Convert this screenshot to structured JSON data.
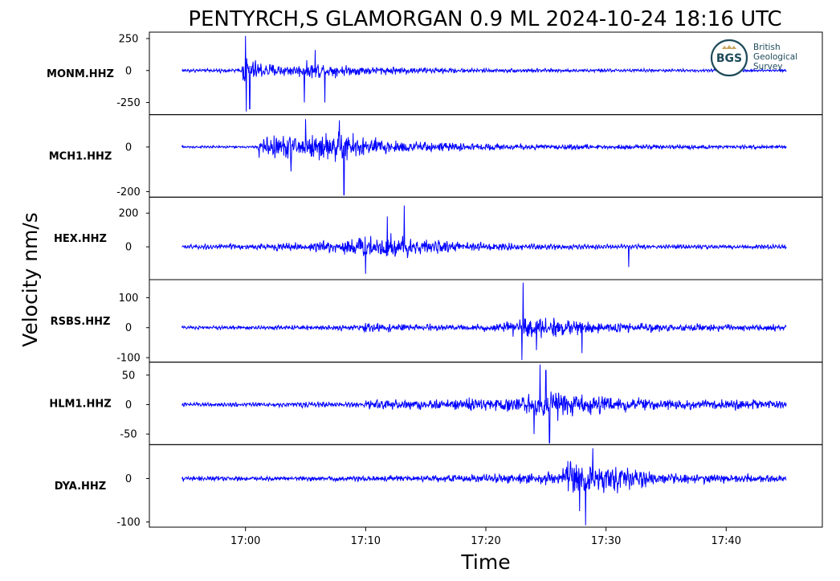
{
  "chart_data": {
    "type": "line",
    "title": "PENTYRCH,S GLAMORGAN 0.9 ML   2024-10-24 18:16 UTC",
    "xlabel": "Time",
    "ylabel": "Velocity nm/s",
    "x_ticks": [
      "17:00",
      "17:10",
      "17:20",
      "17:30",
      "17:40"
    ],
    "x_tick_minutes": [
      0,
      10,
      20,
      30,
      40
    ],
    "xlim": [
      -8,
      48
    ],
    "trace_range": [
      -5.3,
      45
    ],
    "line_color": "#0000ff",
    "grid": false,
    "legend": "none",
    "panels": [
      {
        "station": "MONM.HHZ",
        "ylim": [
          -345,
          300
        ],
        "yticks": [
          250,
          0,
          -250
        ],
        "ytick_labels": [
          "250",
          "0",
          "-250"
        ],
        "noise": 10,
        "envelope": [
          [
            -5.3,
            15
          ],
          [
            -0.3,
            18
          ],
          [
            -0.2,
            170
          ],
          [
            0.5,
            120
          ],
          [
            2,
            75
          ],
          [
            4,
            62
          ],
          [
            6,
            95
          ],
          [
            8,
            55
          ],
          [
            12,
            40
          ],
          [
            16,
            28
          ],
          [
            22,
            18
          ],
          [
            30,
            14
          ],
          [
            45,
            12
          ]
        ],
        "spikes": [
          [
            0.0,
            270
          ],
          [
            0.07,
            -320
          ],
          [
            0.35,
            -300
          ],
          [
            4.9,
            -250
          ],
          [
            6.6,
            -250
          ],
          [
            5.8,
            160
          ]
        ]
      },
      {
        "station": "MCH1.HHZ",
        "ylim": [
          -225,
          145
        ],
        "yticks": [
          0,
          -200
        ],
        "ytick_labels": [
          "0",
          "-200"
        ],
        "noise": 4,
        "envelope": [
          [
            -5.3,
            6
          ],
          [
            1,
            6
          ],
          [
            1.1,
            65
          ],
          [
            4,
            75
          ],
          [
            6,
            80
          ],
          [
            8,
            95
          ],
          [
            10,
            60
          ],
          [
            13,
            38
          ],
          [
            17,
            24
          ],
          [
            25,
            16
          ],
          [
            35,
            12
          ],
          [
            45,
            10
          ]
        ],
        "spikes": [
          [
            8.2,
            -215
          ],
          [
            7.8,
            120
          ],
          [
            5,
            125
          ],
          [
            3.8,
            -110
          ]
        ]
      },
      {
        "station": "HEX.HHZ",
        "ylim": [
          -195,
          295
        ],
        "yticks": [
          200,
          0
        ],
        "ytick_labels": [
          "200",
          "0"
        ],
        "noise": 12,
        "envelope": [
          [
            -5.3,
            14
          ],
          [
            2,
            22
          ],
          [
            5,
            35
          ],
          [
            8,
            60
          ],
          [
            10,
            85
          ],
          [
            12,
            110
          ],
          [
            14,
            70
          ],
          [
            16,
            45
          ],
          [
            20,
            30
          ],
          [
            26,
            20
          ],
          [
            31,
            14
          ],
          [
            33,
            14
          ],
          [
            38,
            15
          ],
          [
            45,
            14
          ]
        ],
        "spikes": [
          [
            13.2,
            245
          ],
          [
            11.8,
            180
          ],
          [
            10,
            -160
          ],
          [
            31.9,
            120
          ],
          [
            31.9,
            -120
          ]
        ]
      },
      {
        "station": "RSBS.HHZ",
        "ylim": [
          -115,
          160
        ],
        "yticks": [
          100,
          0,
          -100
        ],
        "ytick_labels": [
          "100",
          "0",
          "-100"
        ],
        "noise": 5,
        "envelope": [
          [
            -5.3,
            6
          ],
          [
            5,
            9
          ],
          [
            9.8,
            10
          ],
          [
            10,
            25
          ],
          [
            12,
            18
          ],
          [
            16,
            12
          ],
          [
            20,
            14
          ],
          [
            22,
            25
          ],
          [
            23,
            42
          ],
          [
            25,
            45
          ],
          [
            27,
            32
          ],
          [
            30,
            22
          ],
          [
            36,
            16
          ],
          [
            45,
            14
          ]
        ],
        "spikes": [
          [
            23.1,
            150
          ],
          [
            23,
            -108
          ],
          [
            24.2,
            -75
          ],
          [
            28,
            -85
          ]
        ]
      },
      {
        "station": "HLM1.HHZ",
        "ylim": [
          -68,
          72
        ],
        "yticks": [
          50,
          0,
          -50
        ],
        "ytick_labels": [
          "50",
          "0",
          "-50"
        ],
        "noise": 3,
        "envelope": [
          [
            -5.3,
            4
          ],
          [
            9.8,
            5
          ],
          [
            10,
            12
          ],
          [
            14,
            12
          ],
          [
            20,
            14
          ],
          [
            23,
            18
          ],
          [
            24,
            28
          ],
          [
            26,
            30
          ],
          [
            28,
            24
          ],
          [
            30,
            18
          ],
          [
            35,
            12
          ],
          [
            45,
            10
          ]
        ],
        "spikes": [
          [
            24.5,
            68
          ],
          [
            25.3,
            -65
          ],
          [
            24,
            -50
          ],
          [
            25,
            58
          ]
        ]
      },
      {
        "station": "DYA.HHZ",
        "ylim": [
          -112,
          78
        ],
        "yticks": [
          0,
          -100
        ],
        "ytick_labels": [
          "0",
          "-100"
        ],
        "noise": 3,
        "envelope": [
          [
            -5.3,
            6
          ],
          [
            5,
            7
          ],
          [
            12,
            8
          ],
          [
            18,
            12
          ],
          [
            24,
            16
          ],
          [
            26,
            22
          ],
          [
            27,
            50
          ],
          [
            29,
            55
          ],
          [
            31,
            38
          ],
          [
            34,
            20
          ],
          [
            38,
            14
          ],
          [
            45,
            10
          ]
        ],
        "spikes": [
          [
            28.3,
            -108
          ],
          [
            28.9,
            70
          ],
          [
            27.8,
            -75
          ]
        ]
      }
    ]
  },
  "logo": {
    "badge": "BGS",
    "lines": [
      "British",
      "Geological",
      "Survey"
    ]
  }
}
